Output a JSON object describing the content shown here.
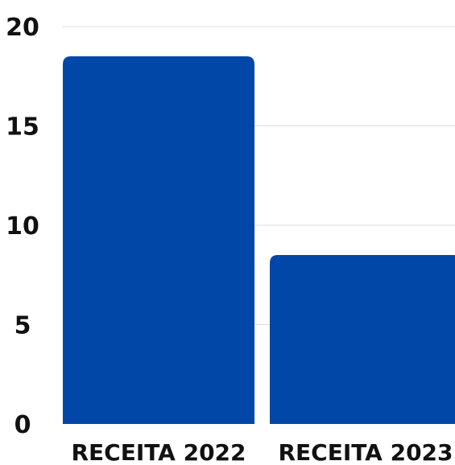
{
  "chart_data": {
    "type": "bar",
    "title": "",
    "xlabel": "",
    "ylabel": "",
    "categories": [
      "RECEITA 2022",
      "RECEITA 2023"
    ],
    "values": [
      18.5,
      8.5
    ],
    "ylim": [
      0,
      20
    ],
    "yticks": [
      "0",
      "5",
      "10",
      "15",
      "20"
    ],
    "grid": true,
    "legend": "none",
    "bar_color": "#0047A8",
    "grid_color": "#DDDDDD",
    "text_color": "#111111"
  }
}
